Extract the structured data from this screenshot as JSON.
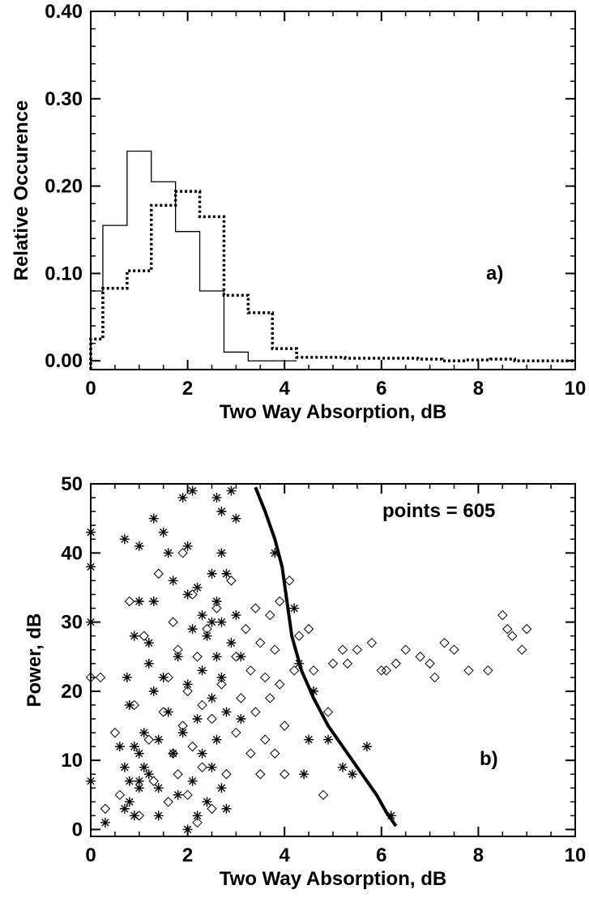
{
  "chart_data": [
    {
      "id": "panel-a",
      "type": "histogram",
      "panel_label": "a)",
      "xlabel": "Two Way Absorption, dB",
      "ylabel": "Relative Occurence",
      "xlim": [
        0,
        10
      ],
      "ylim": [
        -0.01,
        0.4
      ],
      "xticks": [
        0,
        2,
        4,
        6,
        8,
        10
      ],
      "xtick_labels": [
        "0",
        "2",
        "4",
        "6",
        "8",
        "10"
      ],
      "yticks": [
        0.0,
        0.1,
        0.2,
        0.3,
        0.4
      ],
      "ytick_labels": [
        "0.00",
        "0.10",
        "0.20",
        "0.30",
        "0.40"
      ],
      "bin_width": 0.5,
      "series": [
        {
          "style": "solid",
          "color": "#000000",
          "bin_edges_start": [
            -0.25,
            0.25,
            0.75,
            1.25,
            1.75,
            2.25,
            2.75,
            3.25,
            3.75
          ],
          "values": [
            0.08,
            0.155,
            0.24,
            0.205,
            0.148,
            0.08,
            0.01,
            0.0,
            0.0
          ]
        },
        {
          "style": "dotted",
          "color": "#000000",
          "bin_edges_start": [
            -0.25,
            0.25,
            0.75,
            1.25,
            1.75,
            2.25,
            2.75,
            3.25,
            3.75,
            4.25,
            4.75,
            5.25,
            5.75,
            6.25,
            6.75,
            7.25,
            7.75,
            8.25,
            8.75,
            9.25,
            9.75
          ],
          "values": [
            0.025,
            0.083,
            0.103,
            0.178,
            0.194,
            0.165,
            0.075,
            0.055,
            0.014,
            0.004,
            0.004,
            0.003,
            0.003,
            0.003,
            0.002,
            0.0,
            0.001,
            0.002,
            0.0,
            0.0,
            0.0
          ]
        }
      ]
    },
    {
      "id": "panel-b",
      "type": "scatter",
      "panel_label": "b)",
      "annotation": "points = 605",
      "xlabel": "Two Way Absorption, dB",
      "ylabel": "Power, dB",
      "xlim": [
        0,
        10
      ],
      "ylim": [
        -1,
        50
      ],
      "xticks": [
        0,
        2,
        4,
        6,
        8,
        10
      ],
      "xtick_labels": [
        "0",
        "2",
        "4",
        "6",
        "8",
        "10"
      ],
      "yticks": [
        0,
        10,
        20,
        30,
        40,
        50
      ],
      "ytick_labels": [
        "0",
        "10",
        "20",
        "30",
        "40",
        "50"
      ],
      "boundary_curve": {
        "x": [
          3.4,
          3.6,
          3.8,
          3.95,
          4.05,
          4.15,
          4.35,
          4.6,
          4.9,
          5.25,
          5.6,
          5.9,
          6.1,
          6.25,
          6.3
        ],
        "y": [
          49.5,
          46,
          42,
          38,
          33,
          28,
          23,
          19,
          15,
          11.5,
          8,
          5,
          2.5,
          1,
          0.5
        ]
      },
      "series": [
        {
          "marker": "asterisk",
          "x": [
            0.0,
            0.0,
            0.0,
            0.0,
            0.3,
            0.6,
            0.7,
            0.7,
            0.7,
            0.75,
            0.8,
            0.8,
            0.8,
            0.9,
            0.9,
            0.9,
            1.0,
            1.0,
            1.0,
            1.0,
            1.1,
            1.1,
            1.2,
            1.2,
            1.3,
            1.3,
            1.3,
            1.4,
            1.4,
            1.4,
            1.5,
            1.5,
            1.6,
            1.6,
            1.7,
            1.7,
            1.8,
            1.8,
            1.9,
            1.9,
            2.0,
            2.0,
            2.0,
            2.0,
            2.1,
            2.1,
            2.2,
            2.2,
            2.2,
            2.3,
            2.3,
            2.3,
            2.4,
            2.4,
            2.5,
            2.5,
            2.5,
            2.5,
            2.6,
            2.6,
            2.6,
            2.6,
            2.7,
            2.7,
            2.7,
            2.7,
            2.7,
            2.8,
            2.8,
            2.8,
            2.9,
            2.9,
            3.0,
            3.0,
            3.1,
            3.1,
            3.8,
            4.2,
            4.3,
            4.4,
            4.5,
            4.6,
            4.9,
            5.2,
            5.4,
            5.7,
            6.2,
            1.0,
            1.2,
            2.1
          ],
          "y": [
            43,
            38,
            30,
            7,
            1,
            12,
            42,
            9,
            3,
            22,
            18,
            7,
            4,
            28,
            12,
            2,
            41,
            33,
            11,
            6,
            14,
            9,
            27,
            8,
            45,
            33,
            20,
            13,
            6,
            2,
            43,
            22,
            40,
            17,
            36,
            11,
            25,
            5,
            48,
            14,
            41,
            34,
            21,
            0,
            49,
            7,
            35,
            16,
            2,
            31,
            23,
            11,
            28,
            4,
            37,
            30,
            19,
            9,
            48,
            33,
            25,
            13,
            46,
            40,
            30,
            22,
            6,
            37,
            17,
            3,
            49,
            27,
            45,
            31,
            25,
            16,
            40,
            32,
            24,
            8,
            13,
            20,
            13,
            9,
            8,
            12,
            2,
            7,
            24,
            29
          ]
        },
        {
          "marker": "diamond",
          "x": [
            0.0,
            0.2,
            0.3,
            0.5,
            0.6,
            0.8,
            0.9,
            1.0,
            1.1,
            1.2,
            1.3,
            1.4,
            1.5,
            1.6,
            1.6,
            1.7,
            1.7,
            1.8,
            1.8,
            1.9,
            1.9,
            2.0,
            2.0,
            2.1,
            2.1,
            2.2,
            2.2,
            2.3,
            2.3,
            2.4,
            2.5,
            2.5,
            2.6,
            2.7,
            2.8,
            2.9,
            3.0,
            3.0,
            3.1,
            3.2,
            3.3,
            3.3,
            3.4,
            3.4,
            3.5,
            3.5,
            3.6,
            3.6,
            3.7,
            3.7,
            3.8,
            3.8,
            3.9,
            3.9,
            4.0,
            4.0,
            4.1,
            4.2,
            4.3,
            4.5,
            4.6,
            4.8,
            4.9,
            5.0,
            5.2,
            5.3,
            5.5,
            5.8,
            6.0,
            6.1,
            6.3,
            6.5,
            6.8,
            7.0,
            7.1,
            7.3,
            7.5,
            7.8,
            8.2,
            8.5,
            8.6,
            8.7,
            8.9,
            9.0
          ],
          "y": [
            22,
            22,
            3,
            14,
            5,
            33,
            18,
            2,
            28,
            13,
            7,
            37,
            17,
            22,
            4,
            30,
            11,
            26,
            8,
            40,
            15,
            20,
            5,
            34,
            12,
            25,
            1,
            18,
            9,
            29,
            16,
            3,
            32,
            21,
            8,
            36,
            25,
            14,
            19,
            29,
            23,
            11,
            32,
            17,
            27,
            8,
            22,
            13,
            31,
            19,
            26,
            11,
            33,
            21,
            15,
            8,
            36,
            23,
            28,
            29,
            23,
            5,
            17,
            24,
            26,
            24,
            26,
            27,
            23,
            23,
            24,
            26,
            25,
            24,
            22,
            27,
            26,
            23,
            23,
            31,
            29,
            28,
            26,
            29
          ]
        }
      ]
    }
  ]
}
